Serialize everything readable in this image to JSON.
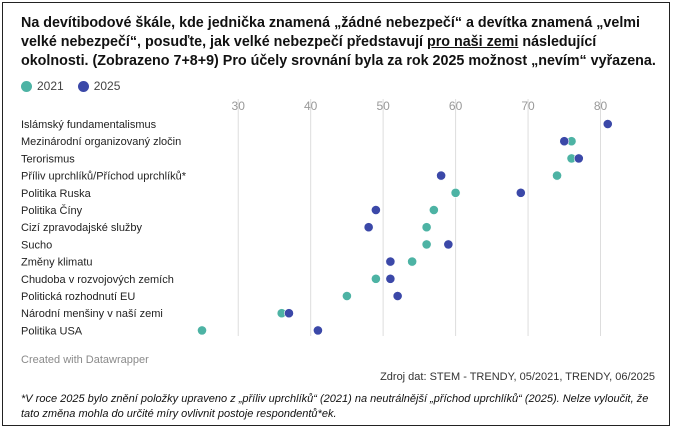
{
  "title": {
    "part1": "Na devítibodové škále, kde jednička znamená „žádné nebezpečí“ a devítka znamená „velmi velké nebezpečí“, posuďte, jak velké nebezpečí představují ",
    "underlined": "pro naši zemi",
    "part2": " následující okolnosti. (Zobrazeno 7+8+9) Pro účely srovnání byla za rok 2025 možnost „nevím“ vyřazena."
  },
  "legend": [
    {
      "label": "2021",
      "color": "#4db3a4"
    },
    {
      "label": "2025",
      "color": "#3b48a8"
    }
  ],
  "credit": "Created with Datawrapper",
  "source": "Zdroj dat: STEM - TRENDY, 05/2021, TRENDY, 06/2025",
  "footnote": "*V roce 2025 bylo znění položky upraveno z „příliv uprchlíků“ (2021) na neutrálnější „příchod uprchlíků“ (2025). Nelze vyloučit, že tato změna mohla do určité míry ovlivnit postoje respondentů*ek.",
  "colors": {
    "2021": "#4db3a4",
    "2025": "#3b48a8",
    "gridline": "#dddddd",
    "tick": "#999999"
  },
  "chart_data": {
    "type": "scatter",
    "subtype": "dot-plot",
    "xlim": [
      25,
      82
    ],
    "xticks": [
      30,
      40,
      50,
      60,
      70,
      80
    ],
    "grid": true,
    "legend_position": "top-left",
    "categories": [
      "Islámský fundamentalismus",
      "Mezinárodní organizovaný zločin",
      "Terorismus",
      "Příliv uprchlíků/Příchod uprchlíků*",
      "Politika Ruska",
      "Politika Číny",
      "Cizí zpravodajské služby",
      "Sucho",
      "Změny klimatu",
      "Chudoba v rozvojových zemích",
      "Politická rozhodnutí EU",
      "Národní menšiny v naší zemi",
      "Politika USA"
    ],
    "series": [
      {
        "name": "2021",
        "values": [
          null,
          76,
          76,
          74,
          60,
          57,
          56,
          56,
          54,
          49,
          45,
          36,
          25
        ]
      },
      {
        "name": "2025",
        "values": [
          81,
          75,
          77,
          58,
          69,
          49,
          48,
          59,
          51,
          51,
          52,
          37,
          41
        ]
      }
    ]
  }
}
